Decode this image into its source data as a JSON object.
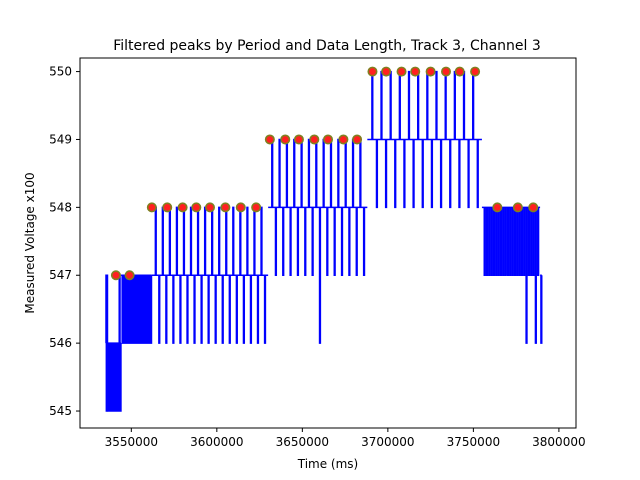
{
  "chart_data": {
    "type": "line",
    "title": "Filtered peaks by Period and Data Length, Track 3, Channel 3",
    "xlabel": "Time (ms)",
    "ylabel": "Measured Voltage x100",
    "xlim": [
      3520000,
      3810000
    ],
    "ylim": [
      544.75,
      550.2
    ],
    "xticks": [
      3550000,
      3600000,
      3650000,
      3700000,
      3750000,
      3800000
    ],
    "xtick_labels": [
      "3550000",
      "3600000",
      "3650000",
      "3700000",
      "3750000",
      "3800000"
    ],
    "yticks": [
      545,
      546,
      547,
      548,
      549,
      550
    ],
    "ytick_labels": [
      "545",
      "546",
      "547",
      "548",
      "549",
      "550"
    ],
    "grid": false,
    "legend": "none",
    "series": [
      {
        "kind": "line",
        "color": "#0000ff",
        "segments": [
          {
            "x_start": 3535000,
            "x_end": 3536000,
            "base": 546,
            "spikes": [
              547,
              545,
              547,
              546
            ],
            "note_level": 546
          },
          {
            "x_start": 3536000,
            "x_end": 3544000,
            "base": 546,
            "spikes": [
              545,
              545,
              545,
              545,
              545,
              545,
              545,
              545,
              545,
              545,
              545,
              545,
              547,
              545
            ],
            "note_level": 545
          },
          {
            "x_start": 3544000,
            "x_end": 3562000,
            "base": 547,
            "spikes": [
              546,
              546,
              546,
              546,
              546,
              546,
              546,
              546,
              546,
              546,
              546,
              546,
              546,
              546,
              546,
              546,
              546,
              546,
              546,
              546,
              546,
              546,
              546,
              546,
              546,
              546
            ],
            "note_level": 547
          },
          {
            "x_start": 3562000,
            "x_end": 3630000,
            "base": 547,
            "spikes": [
              548,
              546,
              548,
              546,
              548,
              546,
              548,
              546,
              548,
              546,
              548,
              546,
              548,
              546,
              548,
              546,
              548,
              546,
              548,
              546,
              548,
              546,
              548,
              546,
              548,
              546,
              548,
              546,
              548,
              546,
              548,
              546
            ],
            "note_level": 547
          },
          {
            "x_start": 3630000,
            "x_end": 3688000,
            "base": 548,
            "spikes": [
              549,
              547,
              549,
              547,
              549,
              547,
              549,
              547,
              549,
              547,
              549,
              547,
              549,
              546,
              549,
              547,
              549,
              547,
              549,
              547,
              549,
              547,
              549,
              547,
              549,
              547
            ],
            "note_level": 548
          },
          {
            "x_start": 3688000,
            "x_end": 3755000,
            "base": 549,
            "spikes": [
              550,
              548,
              550,
              548,
              550,
              548,
              550,
              548,
              550,
              548,
              550,
              548,
              550,
              548,
              550,
              548,
              550,
              548,
              550,
              548,
              550,
              548,
              550,
              548
            ],
            "note_level": 549
          },
          {
            "x_start": 3755000,
            "x_end": 3789000,
            "base": 548,
            "spikes": [
              547,
              547,
              547,
              547,
              547,
              547,
              547,
              547,
              547,
              547,
              547,
              547,
              547,
              547,
              547,
              547,
              547,
              547,
              546,
              547,
              547,
              547,
              546,
              547
            ],
            "note_level": 548
          },
          {
            "x_start": 3789000,
            "x_end": 3790000,
            "base": 547,
            "spikes": [
              546
            ],
            "note_level": 547
          }
        ]
      },
      {
        "kind": "peaks",
        "fill": "#ff2020",
        "edge": "#808020",
        "points": [
          {
            "x": 3541000,
            "y": 547
          },
          {
            "x": 3549000,
            "y": 547
          },
          {
            "x": 3562000,
            "y": 548
          },
          {
            "x": 3571000,
            "y": 548
          },
          {
            "x": 3580000,
            "y": 548
          },
          {
            "x": 3588000,
            "y": 548
          },
          {
            "x": 3596000,
            "y": 548
          },
          {
            "x": 3605000,
            "y": 548
          },
          {
            "x": 3614000,
            "y": 548
          },
          {
            "x": 3623000,
            "y": 548
          },
          {
            "x": 3631000,
            "y": 549
          },
          {
            "x": 3640000,
            "y": 549
          },
          {
            "x": 3648000,
            "y": 549
          },
          {
            "x": 3657000,
            "y": 549
          },
          {
            "x": 3665000,
            "y": 549
          },
          {
            "x": 3674000,
            "y": 549
          },
          {
            "x": 3682000,
            "y": 549
          },
          {
            "x": 3691000,
            "y": 550
          },
          {
            "x": 3699000,
            "y": 550
          },
          {
            "x": 3708000,
            "y": 550
          },
          {
            "x": 3716000,
            "y": 550
          },
          {
            "x": 3725000,
            "y": 550
          },
          {
            "x": 3734000,
            "y": 550
          },
          {
            "x": 3742000,
            "y": 550
          },
          {
            "x": 3751000,
            "y": 550
          },
          {
            "x": 3764000,
            "y": 548
          },
          {
            "x": 3776000,
            "y": 548
          },
          {
            "x": 3785000,
            "y": 548
          }
        ]
      }
    ]
  }
}
